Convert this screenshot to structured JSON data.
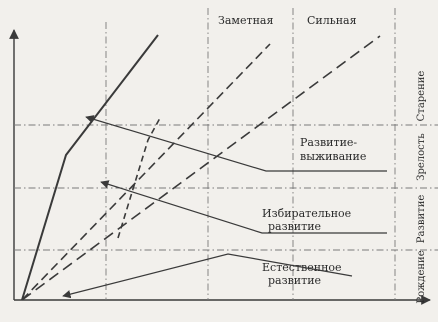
{
  "columns": {
    "noticeable": "Заметная",
    "strong": "Сильная"
  },
  "stages": {
    "aging": "Старение",
    "maturity": "Зрелость",
    "development": "Развитие",
    "birth": "Рождение"
  },
  "annotations": {
    "survival_line1": "Развитие-",
    "survival_line2": "выживание",
    "selective_line1": "Избирательное",
    "selective_line2": "развитие",
    "natural_line1": "Естественное",
    "natural_line2": "развитие"
  },
  "colors": {
    "background": "#f2f0ec",
    "ink": "#3a3a3a",
    "grid": "#7a7a7a"
  }
}
